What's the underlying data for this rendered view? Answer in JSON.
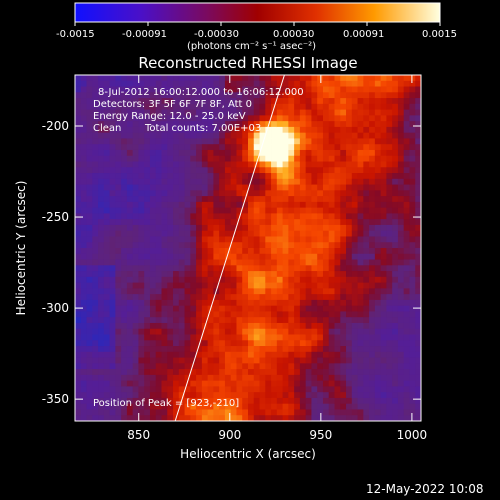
{
  "colorbar": {
    "ticks": [
      "-0.0015",
      "-0.00091",
      "-0.00030",
      "0.00030",
      "0.00091",
      "0.0015"
    ],
    "unit_label": "(photons cm⁻² s⁻¹ asec⁻²)",
    "colors": [
      "#2a1aff",
      "#6a1ab0",
      "#a01a40",
      "#d82a00",
      "#ff7a00",
      "#ffd030",
      "#ffffff"
    ]
  },
  "chart_data": {
    "type": "heatmap",
    "title": "Reconstructed RHESSI Image",
    "xlabel": "Heliocentric X (arcsec)",
    "ylabel": "Heliocentric Y (arcsec)",
    "xlim": [
      815,
      1005
    ],
    "ylim": [
      -362,
      -172
    ],
    "xticks": [
      850,
      900,
      950,
      1000
    ],
    "yticks": [
      -200,
      -250,
      -300,
      -350
    ],
    "annotations": [
      "8-Jul-2012 16:00:12.000 to 16:06:12.000",
      "Detectors: 3F 5F 6F 7F 8F, Att 0",
      "Energy Range: 12.0 - 25.0 keV",
      "Clean",
      "Total counts: 7.00E+03",
      "Position of Peak = [923,-210]"
    ],
    "peak": {
      "x": 923,
      "y": -210
    },
    "limb_line": [
      [
        870,
        -362
      ],
      [
        930,
        -172
      ]
    ]
  },
  "footer": {
    "timestamp": "12-May-2022 10:08"
  }
}
